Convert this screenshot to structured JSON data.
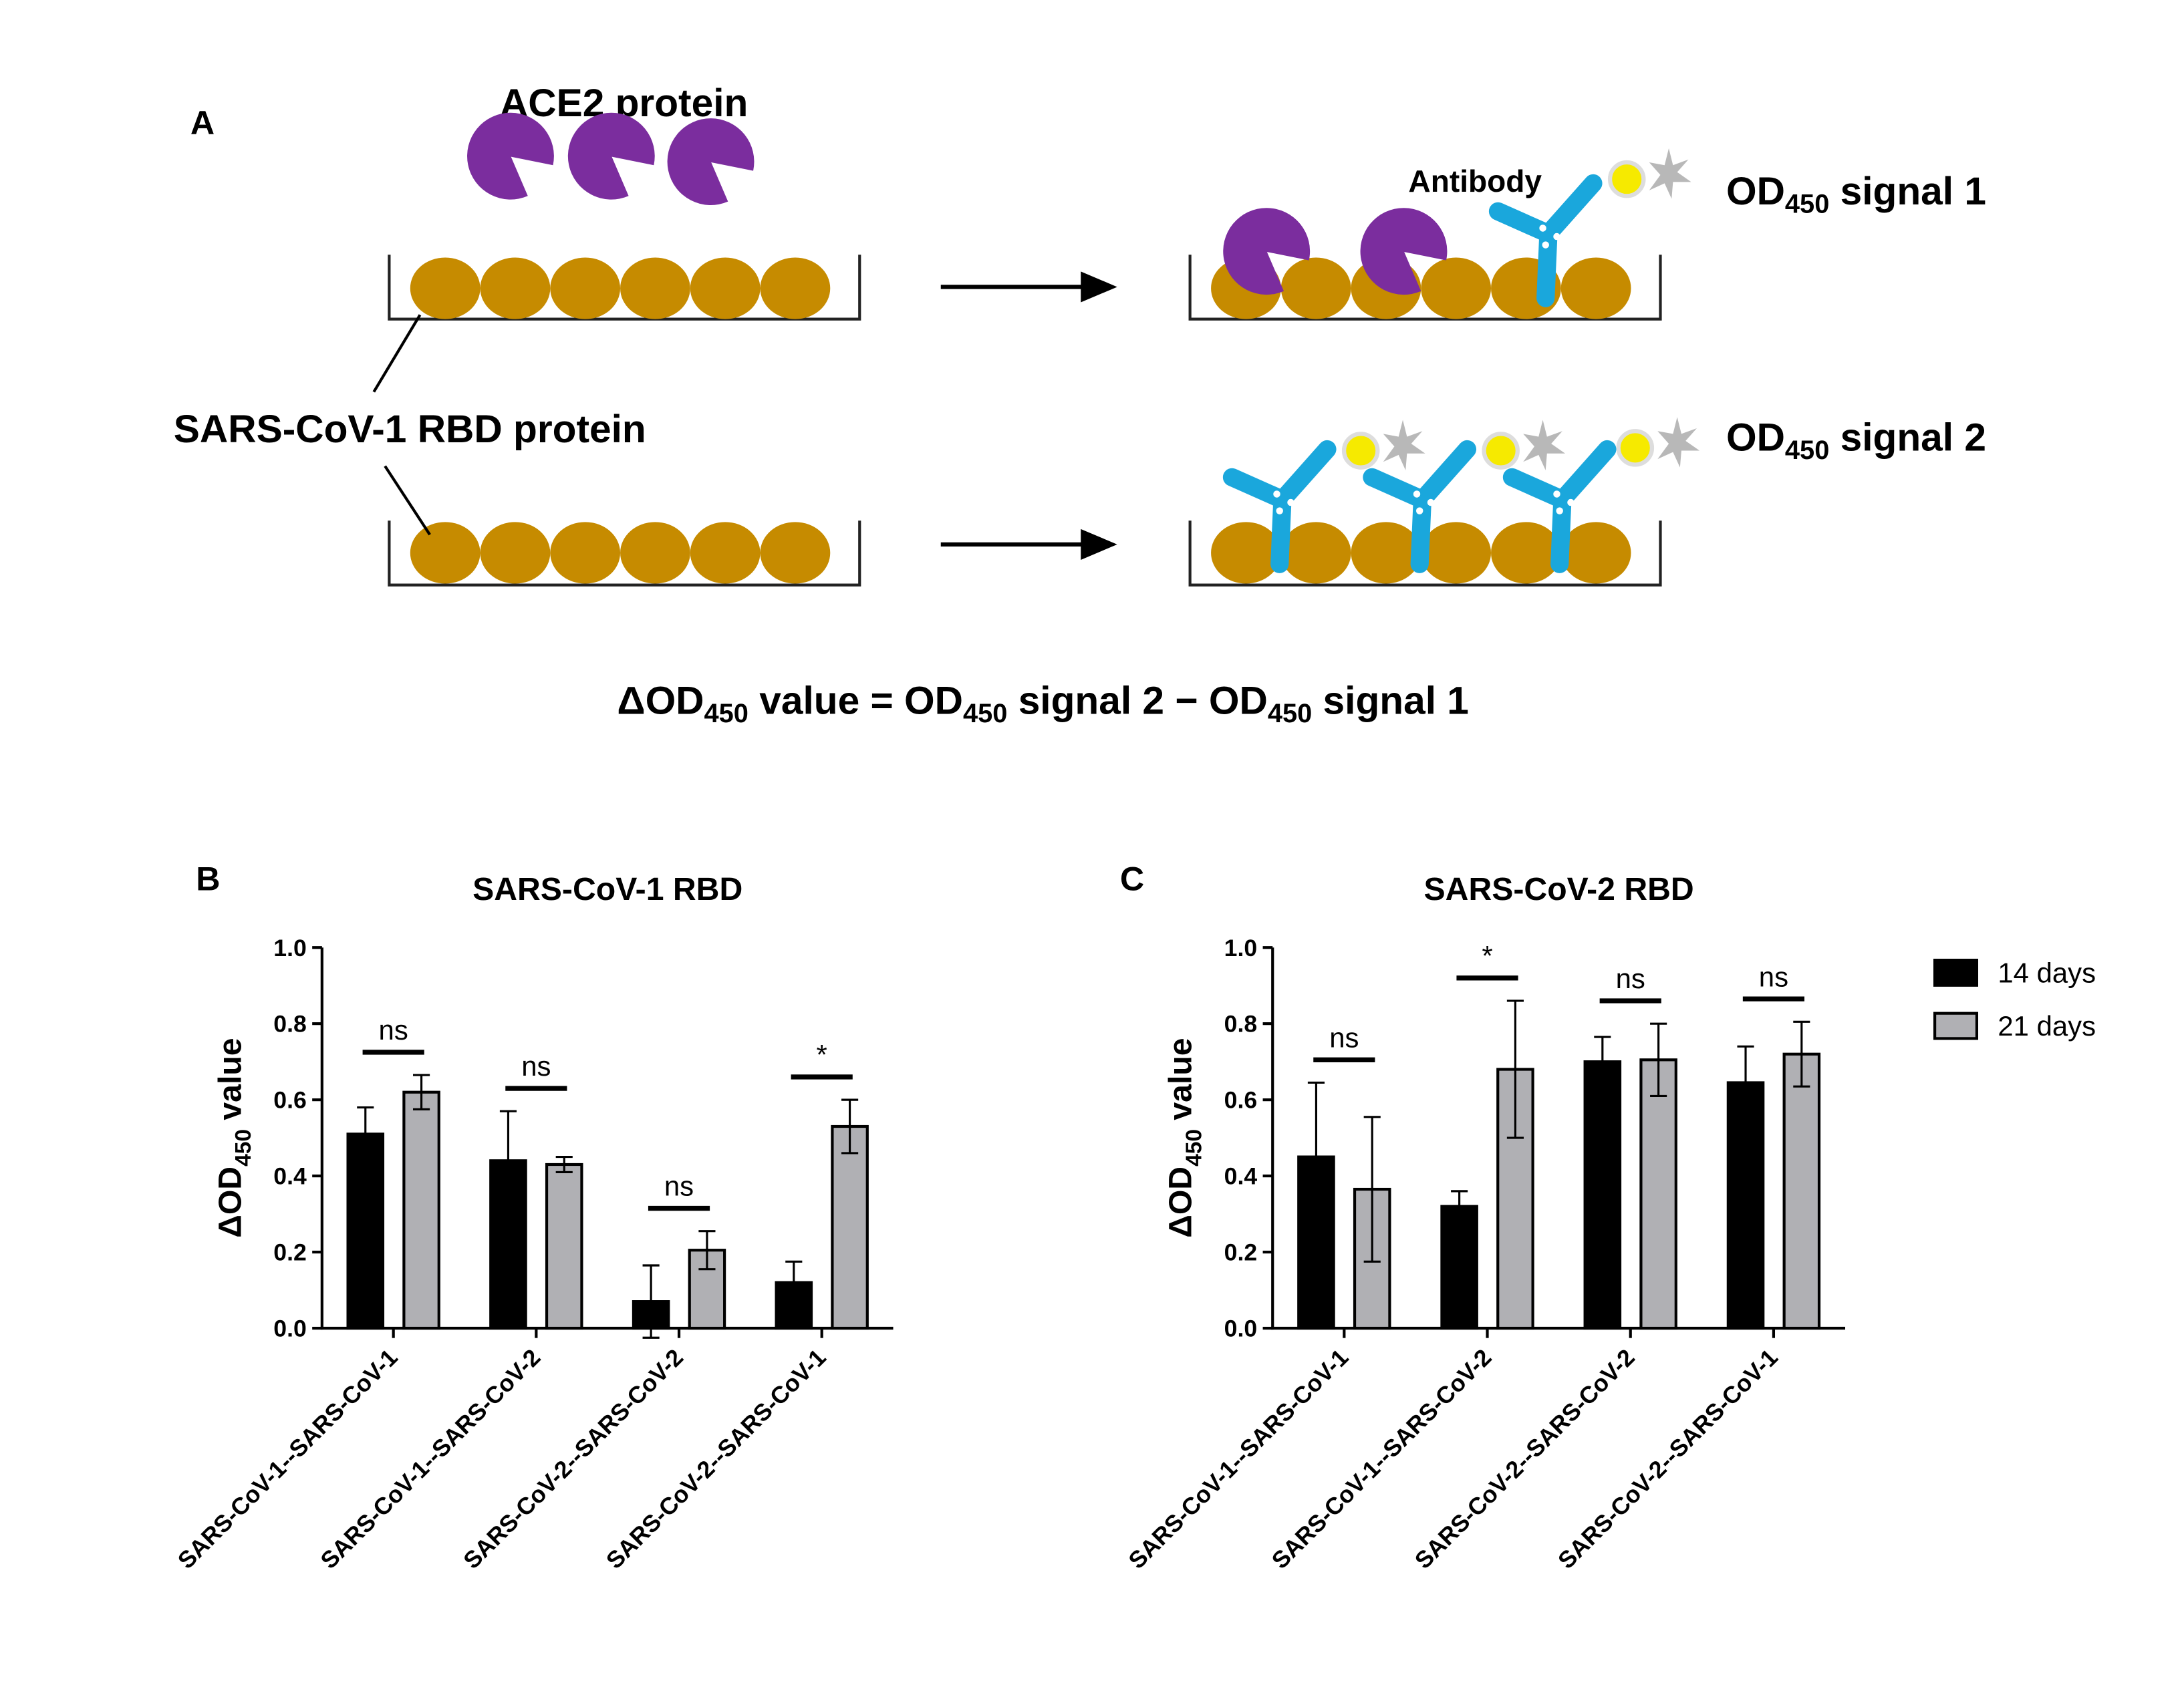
{
  "diagram": {
    "panel": "A",
    "ace2_label": "ACE2 protein",
    "antibody_label": "Antibody",
    "rbd_label": "SARS-CoV-1 RBD protein",
    "signal_1": [
      "OD",
      "450",
      " signal 1"
    ],
    "signal_2": [
      "OD",
      "450",
      " signal 2"
    ],
    "formula": [
      "ΔOD",
      "450",
      " value = OD",
      "450",
      " signal 2 − OD",
      "450",
      " signal 1"
    ]
  },
  "chart_data": [
    {
      "type": "bar",
      "panel": "B",
      "title": "SARS-CoV-1 RBD",
      "y_label": [
        "ΔOD",
        "450",
        " value"
      ],
      "categories": [
        "SARS-CoV-1--SARS-CoV-1",
        "SARS-CoV-1--SARS-CoV-2",
        "SARS-CoV-2--SARS-CoV-2",
        "SARS-CoV-2--SARS-CoV-1"
      ],
      "series": [
        {
          "name": "14 days",
          "color": "#000000",
          "values": [
            0.51,
            0.44,
            0.07,
            0.12
          ],
          "errors": [
            0.07,
            0.13,
            0.095,
            0.055
          ]
        },
        {
          "name": "21 days",
          "color": "#b0b0b4",
          "values": [
            0.62,
            0.43,
            0.205,
            0.53
          ],
          "errors": [
            0.045,
            0.02,
            0.05,
            0.07
          ]
        }
      ],
      "annotations": [
        "ns",
        "ns",
        "ns",
        "*"
      ],
      "ylim": [
        0,
        1
      ],
      "yticks": [
        {
          "value": 0,
          "label": "0.0"
        },
        0.2,
        0.4,
        0.6,
        0.8,
        {
          "value": 1,
          "label": "1.0"
        }
      ]
    },
    {
      "type": "bar",
      "panel": "C",
      "title": "SARS-CoV-2 RBD",
      "y_label": [
        "ΔOD",
        "450",
        " value"
      ],
      "categories": [
        "SARS-CoV-1--SARS-CoV-1",
        "SARS-CoV-1--SARS-CoV-2",
        "SARS-CoV-2--SARS-CoV-2",
        "SARS-CoV-2--SARS-CoV-1"
      ],
      "series": [
        {
          "name": "14 days",
          "color": "#000000",
          "values": [
            0.45,
            0.32,
            0.7,
            0.645
          ],
          "errors": [
            0.195,
            0.04,
            0.065,
            0.095
          ]
        },
        {
          "name": "21 days",
          "color": "#b0b0b4",
          "values": [
            0.365,
            0.68,
            0.705,
            0.72
          ],
          "errors": [
            0.19,
            0.18,
            0.095,
            0.085
          ]
        }
      ],
      "annotations": [
        "ns",
        "*",
        "ns",
        "ns"
      ],
      "ylim": [
        0,
        1
      ],
      "yticks": [
        {
          "value": 0,
          "label": "0.0"
        },
        0.2,
        0.4,
        0.6,
        0.8,
        {
          "value": 1,
          "label": "1.0"
        }
      ],
      "legend": "right"
    }
  ]
}
